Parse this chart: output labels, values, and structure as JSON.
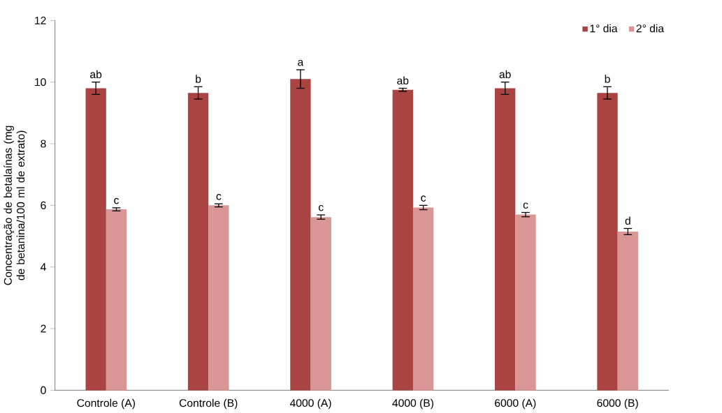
{
  "chart_data": {
    "type": "bar",
    "ylabel": "Concentração  de betalaínas  (mg de betanina/100  ml de extrato)",
    "categories": [
      "Controle (A)",
      "Controle (B)",
      "4000 (A)",
      "4000 (B)",
      "6000 (A)",
      "6000 (B)"
    ],
    "series": [
      {
        "name": "1° dia",
        "color": "#a94442",
        "values": [
          9.8,
          9.65,
          10.1,
          9.75,
          9.8,
          9.65
        ],
        "errors": [
          0.2,
          0.2,
          0.3,
          0.05,
          0.2,
          0.2
        ]
      },
      {
        "name": "2° dia",
        "color": "#d99694",
        "values": [
          5.87,
          6.0,
          5.62,
          5.93,
          5.7,
          5.15
        ],
        "errors": [
          0.05,
          0.05,
          0.07,
          0.07,
          0.07,
          0.1
        ]
      }
    ],
    "ylim": [
      0,
      12
    ],
    "yticks": [
      0,
      2,
      4,
      6,
      8,
      10,
      12
    ],
    "grid": false,
    "legend": "top right",
    "annotations": [
      "ab",
      "c",
      "b",
      "c",
      "a",
      "c",
      "ab",
      "c",
      "ab",
      "c",
      "b",
      "d"
    ]
  }
}
